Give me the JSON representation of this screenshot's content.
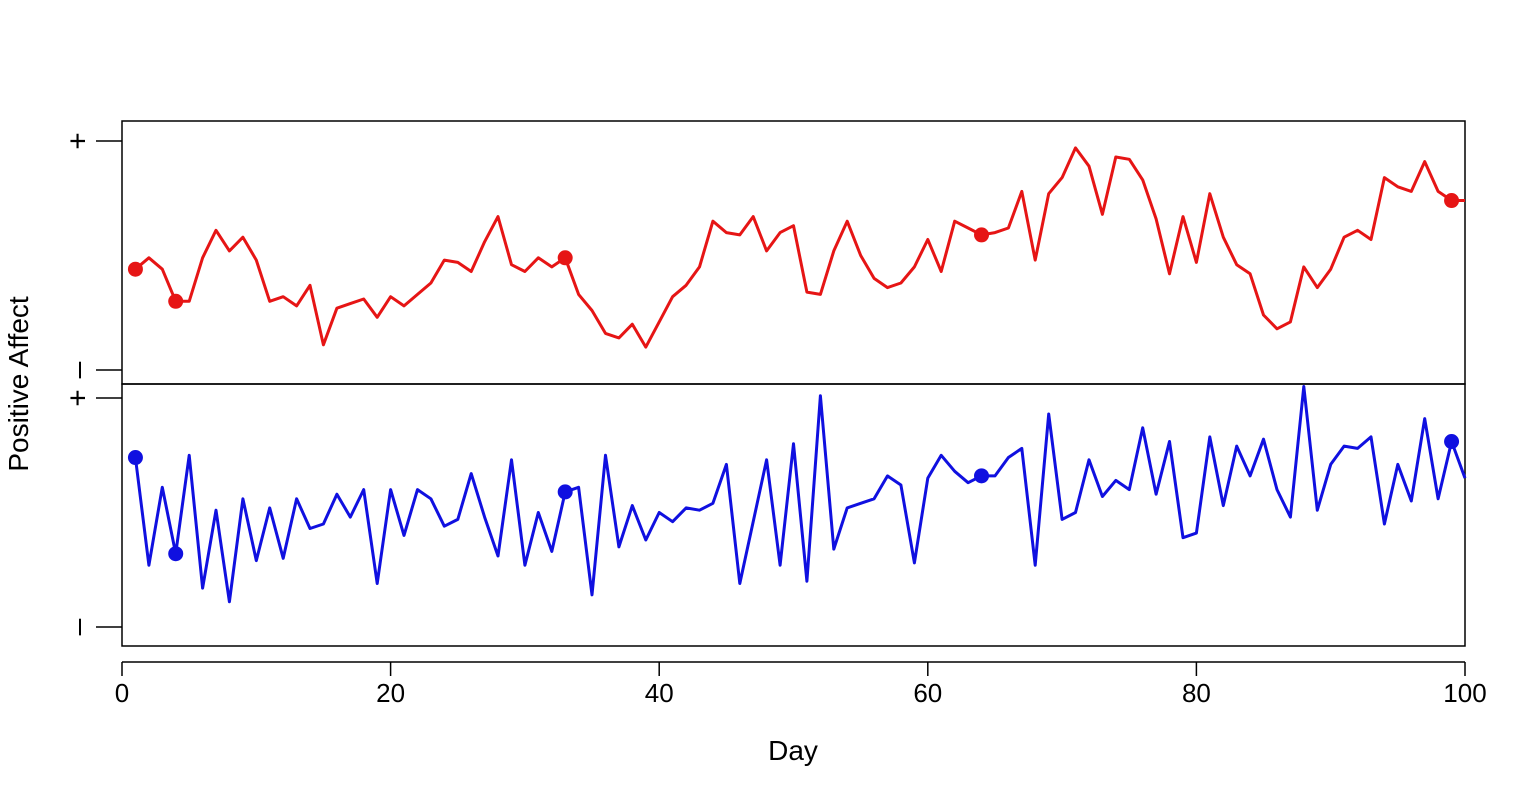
{
  "chart_data": {
    "type": "line",
    "xlabel": "Day",
    "ylabel": "Positive Affect",
    "xlim": [
      0,
      100
    ],
    "xticks": [
      0,
      20,
      40,
      60,
      80,
      100
    ],
    "ylim": [
      0,
      1
    ],
    "ytick_labels": {
      "high": "+",
      "low": "–"
    },
    "panels": [
      {
        "color": "#e61515",
        "x": [
          1,
          2,
          3,
          4,
          5,
          6,
          7,
          8,
          9,
          10,
          11,
          12,
          13,
          14,
          15,
          16,
          17,
          18,
          19,
          20,
          21,
          22,
          23,
          24,
          25,
          26,
          27,
          28,
          29,
          30,
          31,
          32,
          33,
          34,
          35,
          36,
          37,
          38,
          39,
          40,
          41,
          42,
          43,
          44,
          45,
          46,
          47,
          48,
          49,
          50,
          51,
          52,
          53,
          54,
          55,
          56,
          57,
          58,
          59,
          60,
          61,
          62,
          63,
          64,
          65,
          66,
          67,
          68,
          69,
          70,
          71,
          72,
          73,
          74,
          75,
          76,
          77,
          78,
          79,
          80,
          81,
          82,
          83,
          84,
          85,
          86,
          87,
          88,
          89,
          90,
          91,
          92,
          93,
          94,
          95,
          96,
          97,
          98,
          99,
          100
        ],
        "y": [
          0.44,
          0.49,
          0.44,
          0.3,
          0.3,
          0.49,
          0.61,
          0.52,
          0.58,
          0.48,
          0.3,
          0.32,
          0.28,
          0.37,
          0.11,
          0.27,
          0.29,
          0.31,
          0.23,
          0.32,
          0.28,
          0.33,
          0.38,
          0.48,
          0.47,
          0.43,
          0.56,
          0.67,
          0.46,
          0.43,
          0.49,
          0.45,
          0.49,
          0.33,
          0.26,
          0.16,
          0.14,
          0.2,
          0.1,
          0.21,
          0.32,
          0.37,
          0.45,
          0.65,
          0.6,
          0.59,
          0.67,
          0.52,
          0.6,
          0.63,
          0.34,
          0.33,
          0.52,
          0.65,
          0.5,
          0.4,
          0.36,
          0.38,
          0.45,
          0.57,
          0.43,
          0.65,
          0.62,
          0.59,
          0.6,
          0.62,
          0.78,
          0.48,
          0.77,
          0.84,
          0.97,
          0.89,
          0.68,
          0.93,
          0.92,
          0.83,
          0.66,
          0.42,
          0.67,
          0.47,
          0.77,
          0.58,
          0.46,
          0.42,
          0.24,
          0.18,
          0.21,
          0.45,
          0.36,
          0.44,
          0.58,
          0.61,
          0.57,
          0.84,
          0.8,
          0.78,
          0.91,
          0.78,
          0.74,
          0.74
        ],
        "highlight_x": [
          1,
          4,
          33,
          64,
          99
        ]
      },
      {
        "color": "#1010e0",
        "x": [
          1,
          2,
          3,
          4,
          5,
          6,
          7,
          8,
          9,
          10,
          11,
          12,
          13,
          14,
          15,
          16,
          17,
          18,
          19,
          20,
          21,
          22,
          23,
          24,
          25,
          26,
          27,
          28,
          29,
          30,
          31,
          32,
          33,
          34,
          35,
          36,
          37,
          38,
          39,
          40,
          41,
          42,
          43,
          44,
          45,
          46,
          47,
          48,
          49,
          50,
          51,
          52,
          53,
          54,
          55,
          56,
          57,
          58,
          59,
          60,
          61,
          62,
          63,
          64,
          65,
          66,
          67,
          68,
          69,
          70,
          71,
          72,
          73,
          74,
          75,
          76,
          77,
          78,
          79,
          80,
          81,
          82,
          83,
          84,
          85,
          86,
          87,
          88,
          89,
          90,
          91,
          92,
          93,
          94,
          95,
          96,
          97,
          98,
          99,
          100
        ],
        "y": [
          0.74,
          0.27,
          0.61,
          0.32,
          0.75,
          0.17,
          0.51,
          0.11,
          0.56,
          0.29,
          0.52,
          0.3,
          0.56,
          0.43,
          0.45,
          0.58,
          0.48,
          0.6,
          0.19,
          0.6,
          0.4,
          0.6,
          0.56,
          0.44,
          0.47,
          0.67,
          0.48,
          0.31,
          0.73,
          0.27,
          0.5,
          0.33,
          0.59,
          0.61,
          0.14,
          0.75,
          0.35,
          0.53,
          0.38,
          0.5,
          0.46,
          0.52,
          0.51,
          0.54,
          0.71,
          0.19,
          0.46,
          0.73,
          0.27,
          0.8,
          0.2,
          1.01,
          0.34,
          0.52,
          0.54,
          0.56,
          0.66,
          0.62,
          0.28,
          0.65,
          0.75,
          0.68,
          0.63,
          0.66,
          0.66,
          0.74,
          0.78,
          0.27,
          0.93,
          0.47,
          0.5,
          0.73,
          0.57,
          0.64,
          0.6,
          0.87,
          0.58,
          0.81,
          0.39,
          0.41,
          0.83,
          0.53,
          0.79,
          0.66,
          0.82,
          0.6,
          0.48,
          1.05,
          0.51,
          0.71,
          0.79,
          0.78,
          0.83,
          0.45,
          0.71,
          0.55,
          0.91,
          0.56,
          0.81,
          0.65
        ],
        "highlight_x": [
          1,
          4,
          33,
          64,
          99
        ]
      }
    ],
    "grid": false,
    "legend": "none"
  }
}
